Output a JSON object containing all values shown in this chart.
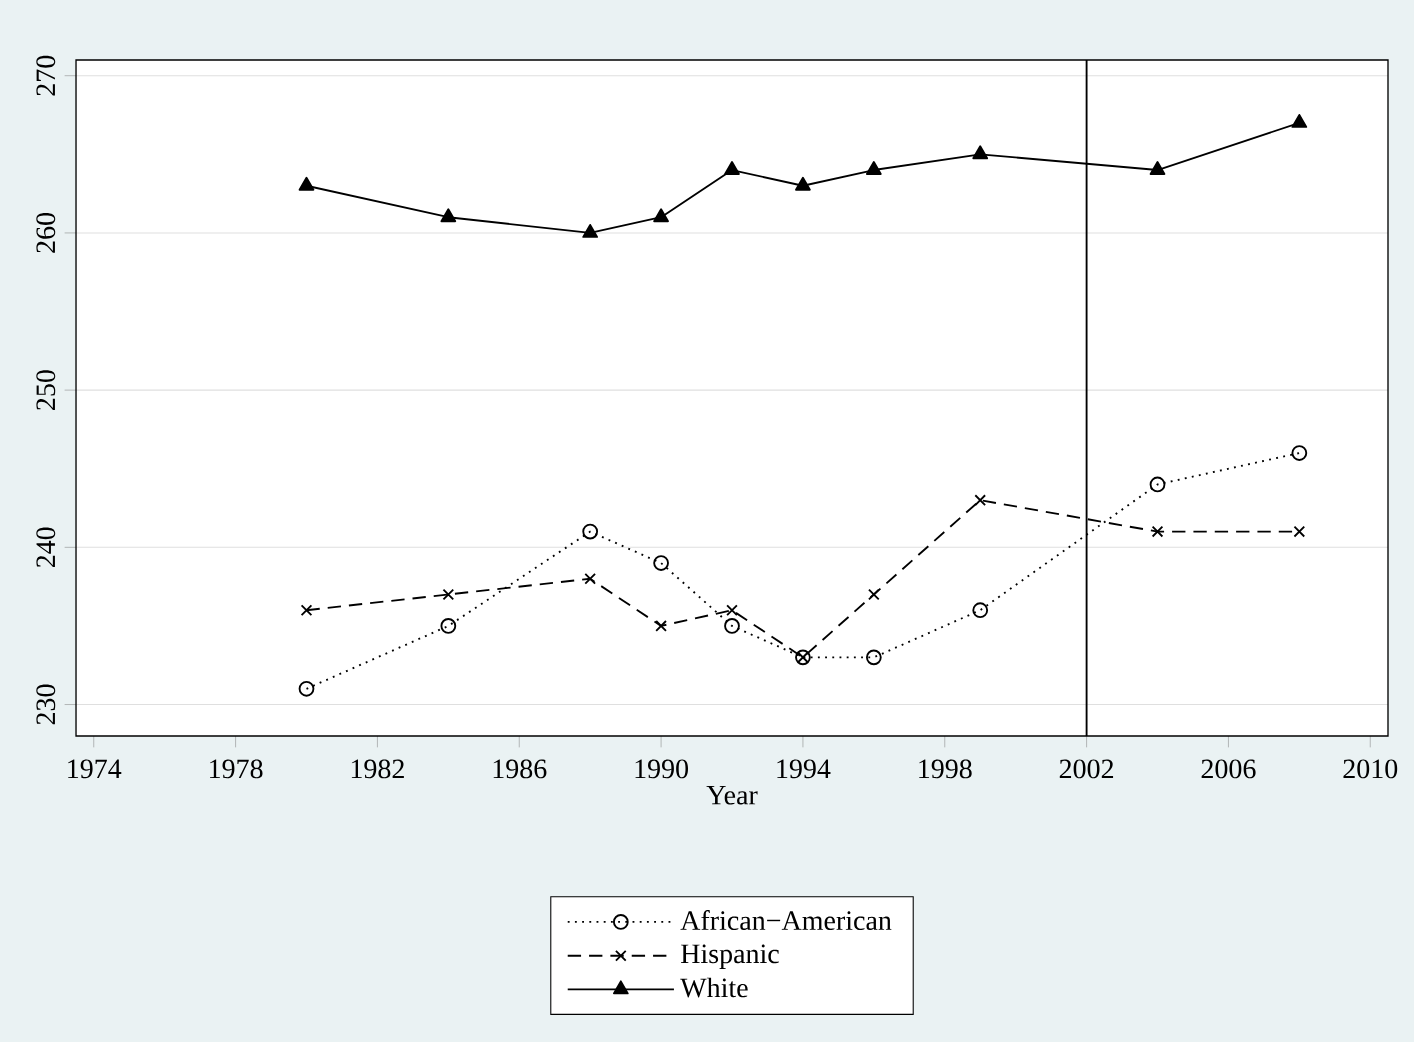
{
  "chart_data": {
    "type": "line",
    "xlabel": "Year",
    "x": [
      1980,
      1984,
      1988,
      1990,
      1992,
      1994,
      1996,
      1999,
      2004,
      2008
    ],
    "series": [
      {
        "name": "African−American",
        "color": "#000000",
        "marker": "circle",
        "line_style": "dotted",
        "values": [
          231,
          235,
          241,
          239,
          235,
          233,
          233,
          236,
          244,
          246
        ]
      },
      {
        "name": "Hispanic",
        "color": "#000000",
        "marker": "cross",
        "line_style": "dashed",
        "values": [
          236,
          237,
          238,
          235,
          236,
          233,
          237,
          243,
          241,
          241
        ]
      },
      {
        "name": "White",
        "color": "#000000",
        "marker": "triangle",
        "line_style": "solid",
        "values": [
          263,
          261,
          260,
          261,
          264,
          263,
          264,
          265,
          264,
          267
        ]
      }
    ],
    "xlim": [
      1973.5,
      2010.5
    ],
    "ylim": [
      228,
      271
    ],
    "xticks": [
      1974,
      1978,
      1982,
      1986,
      1990,
      1994,
      1998,
      2002,
      2006,
      2010
    ],
    "yticks": [
      230,
      240,
      250,
      260,
      270
    ],
    "ref_lines": [
      {
        "axis": "x",
        "value": 2002,
        "color": "#000000"
      }
    ],
    "grid": "y",
    "legend": "bottom"
  }
}
